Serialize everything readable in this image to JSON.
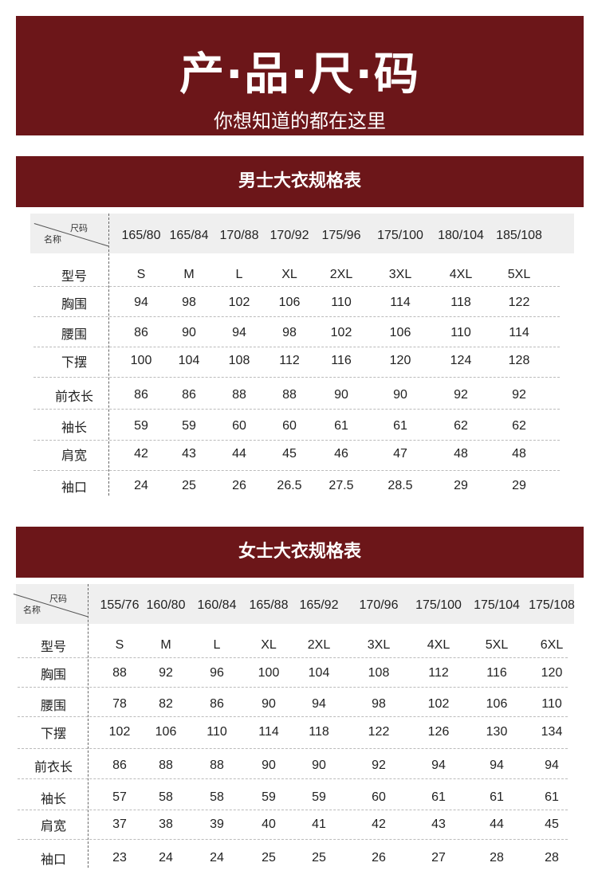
{
  "header": {
    "title": "产·品·尺·码",
    "subtitle": "你想知道的都在这里"
  },
  "colors": {
    "band": "#6c1619",
    "header_row": "#efefef"
  },
  "men": {
    "title": "男士大衣规格表",
    "corner_top": "尺码",
    "corner_bottom": "名称",
    "columns": [
      "165/80",
      "165/84",
      "170/88",
      "170/92",
      "175/96",
      "175/100",
      "180/104",
      "185/108"
    ],
    "rows": [
      {
        "label": "型号",
        "values": [
          "S",
          "M",
          "L",
          "XL",
          "2XL",
          "3XL",
          "4XL",
          "5XL"
        ]
      },
      {
        "label": "胸围",
        "values": [
          "94",
          "98",
          "102",
          "106",
          "110",
          "114",
          "118",
          "122"
        ]
      },
      {
        "label": "腰围",
        "values": [
          "86",
          "90",
          "94",
          "98",
          "102",
          "106",
          "110",
          "114"
        ]
      },
      {
        "label": "下摆",
        "values": [
          "100",
          "104",
          "108",
          "112",
          "116",
          "120",
          "124",
          "128"
        ]
      },
      {
        "label": "前衣长",
        "values": [
          "86",
          "86",
          "88",
          "88",
          "90",
          "90",
          "92",
          "92"
        ]
      },
      {
        "label": "袖长",
        "values": [
          "59",
          "59",
          "60",
          "60",
          "61",
          "61",
          "62",
          "62"
        ]
      },
      {
        "label": "肩宽",
        "values": [
          "42",
          "43",
          "44",
          "45",
          "46",
          "47",
          "48",
          "48"
        ]
      },
      {
        "label": "袖口",
        "values": [
          "24",
          "25",
          "26",
          "26.5",
          "27.5",
          "28.5",
          "29",
          "29"
        ]
      }
    ]
  },
  "women": {
    "title": "女士大衣规格表",
    "corner_top": "尺码",
    "corner_bottom": "名称",
    "columns": [
      "155/76",
      "160/80",
      "160/84",
      "165/88",
      "165/92",
      "170/96",
      "175/100",
      "175/104",
      "175/108"
    ],
    "rows": [
      {
        "label": "型号",
        "values": [
          "S",
          "M",
          "L",
          "XL",
          "2XL",
          "3XL",
          "4XL",
          "5XL",
          "6XL"
        ]
      },
      {
        "label": "胸围",
        "values": [
          "88",
          "92",
          "96",
          "100",
          "104",
          "108",
          "112",
          "116",
          "120"
        ]
      },
      {
        "label": "腰围",
        "values": [
          "78",
          "82",
          "86",
          "90",
          "94",
          "98",
          "102",
          "106",
          "110"
        ]
      },
      {
        "label": "下摆",
        "values": [
          "102",
          "106",
          "110",
          "114",
          "118",
          "122",
          "126",
          "130",
          "134"
        ]
      },
      {
        "label": "前衣长",
        "values": [
          "86",
          "88",
          "88",
          "90",
          "90",
          "92",
          "94",
          "94",
          "94"
        ]
      },
      {
        "label": "袖长",
        "values": [
          "57",
          "58",
          "58",
          "59",
          "59",
          "60",
          "61",
          "61",
          "61"
        ]
      },
      {
        "label": "肩宽",
        "values": [
          "37",
          "38",
          "39",
          "40",
          "41",
          "42",
          "43",
          "44",
          "45"
        ]
      },
      {
        "label": "袖口",
        "values": [
          "23",
          "24",
          "24",
          "25",
          "25",
          "26",
          "27",
          "28",
          "28"
        ]
      }
    ]
  }
}
